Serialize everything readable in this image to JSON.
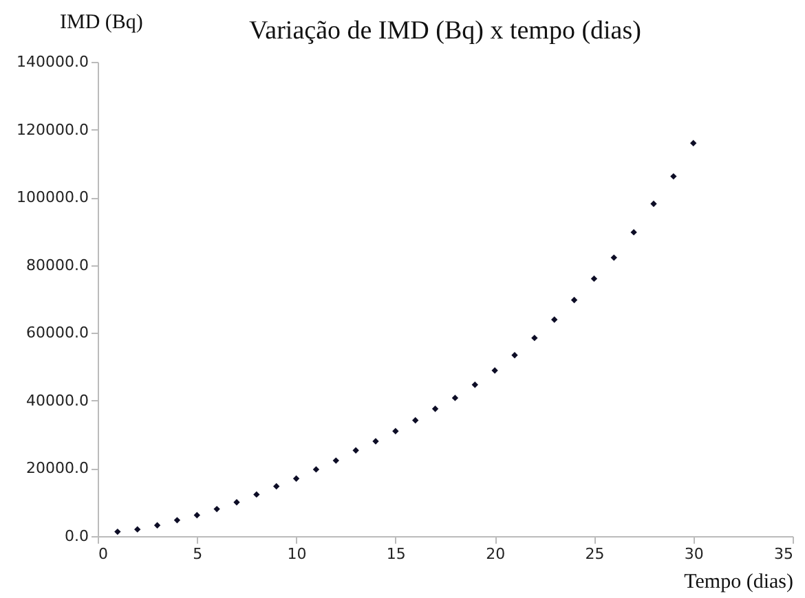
{
  "chart_data": {
    "type": "scatter",
    "title": "Variação de IMD (Bq) x tempo (dias)",
    "xlabel": "Tempo (dias)",
    "ylabel": "IMD (Bq)",
    "x": [
      1,
      2,
      3,
      4,
      5,
      6,
      7,
      8,
      9,
      10,
      11,
      12,
      13,
      14,
      15,
      16,
      17,
      18,
      19,
      20,
      21,
      22,
      23,
      24,
      25,
      26,
      27,
      28,
      29,
      30
    ],
    "series": [
      {
        "color": "#0d0d26",
        "values": [
          1300,
          2000,
          3200,
          4700,
          6200,
          8000,
          10000,
          12300,
          14700,
          17000,
          19700,
          22300,
          25300,
          28000,
          31000,
          34200,
          37600,
          40800,
          44700,
          48900,
          53400,
          58500,
          63900,
          69700,
          76000,
          82200,
          89700,
          98100,
          106200,
          116000
        ]
      }
    ],
    "xlim": [
      0,
      35
    ],
    "xticks": [
      0,
      5,
      10,
      15,
      20,
      25,
      30,
      35
    ],
    "ylim": [
      0,
      140000
    ],
    "yticks": [
      {
        "value": 0,
        "label": "0.0"
      },
      {
        "value": 20000,
        "label": "20000.0"
      },
      {
        "value": 40000,
        "label": "40000.0"
      },
      {
        "value": 60000,
        "label": "60000.0"
      },
      {
        "value": 80000,
        "label": "80000.0"
      },
      {
        "value": 100000,
        "label": "100000.0"
      },
      {
        "value": 120000,
        "label": "120000.0"
      },
      {
        "value": 140000,
        "label": "140000.0"
      }
    ],
    "grid": false,
    "legend": false,
    "marker": "diamond"
  }
}
